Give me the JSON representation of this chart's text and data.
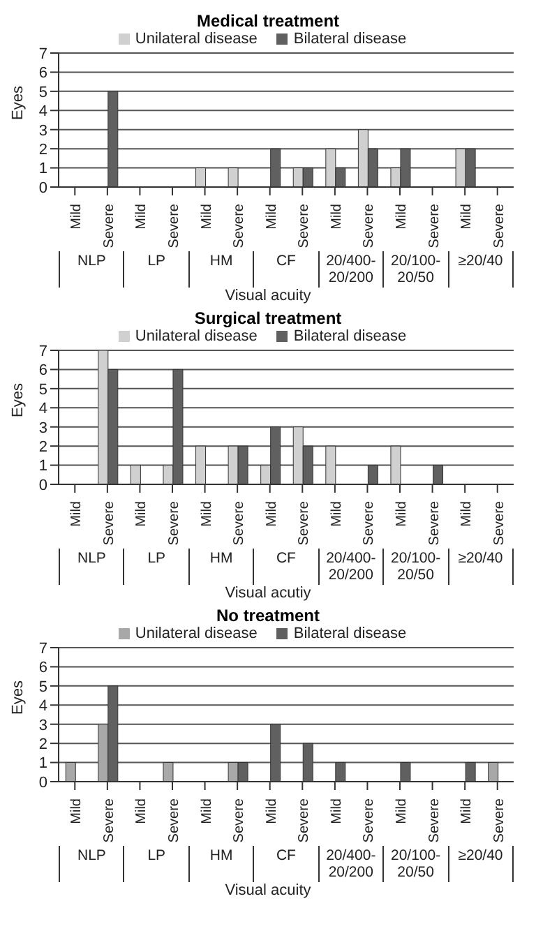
{
  "chart_data": [
    {
      "type": "bar",
      "title": "Medical treatment",
      "xlabel": "Visual acuity",
      "ylabel": "Eyes",
      "categories": [
        "Mild",
        "Severe",
        "Mild",
        "Severe",
        "Mild",
        "Severe",
        "Mild",
        "Severe",
        "Mild",
        "Severe",
        "Mild",
        "Severe",
        "Mild",
        "Severe"
      ],
      "annotations": [
        "NLP",
        "LP",
        "HM",
        "CF",
        "20/400-20/200",
        "20/100-20/50",
        "≥20/40"
      ],
      "series": [
        {
          "name": "Unilateral disease",
          "color": "#d0d0d0",
          "values": [
            0,
            0,
            0,
            0,
            1,
            1,
            0,
            1,
            2,
            3,
            1,
            0,
            2,
            0
          ]
        },
        {
          "name": "Bilateral disease",
          "color": "#606060",
          "values": [
            0,
            5,
            0,
            0,
            0,
            0,
            2,
            1,
            1,
            2,
            2,
            0,
            2,
            0
          ]
        }
      ],
      "ylim": [
        0,
        7
      ],
      "yticks": [
        0,
        1,
        2,
        3,
        4,
        5,
        6,
        7
      ],
      "grid": "y",
      "legend": "top"
    },
    {
      "type": "bar",
      "title": "Surgical treatment",
      "xlabel": "Visual acutiy",
      "ylabel": "Eyes",
      "categories": [
        "Mild",
        "Severe",
        "Mild",
        "Severe",
        "Mild",
        "Severe",
        "Mild",
        "Severe",
        "Mild",
        "Severe",
        "Mild",
        "Severe",
        "Mild",
        "Severe"
      ],
      "annotations": [
        "NLP",
        "LP",
        "HM",
        "CF",
        "20/400-20/200",
        "20/100-20/50",
        "≥20/40"
      ],
      "series": [
        {
          "name": "Unilateral disease",
          "color": "#d0d0d0",
          "values": [
            0,
            7,
            1,
            1,
            2,
            2,
            1,
            3,
            2,
            0,
            2,
            0,
            0,
            0
          ]
        },
        {
          "name": "Bilateral disease",
          "color": "#606060",
          "values": [
            0,
            6,
            0,
            6,
            0,
            2,
            3,
            2,
            0,
            1,
            0,
            1,
            0,
            0
          ]
        }
      ],
      "ylim": [
        0,
        7
      ],
      "yticks": [
        0,
        1,
        2,
        3,
        4,
        5,
        6,
        7
      ],
      "grid": "y",
      "legend": "top"
    },
    {
      "type": "bar",
      "title": "No treatment",
      "xlabel": "Visual acuity",
      "ylabel": "Eyes",
      "categories": [
        "Mild",
        "Severe",
        "Mild",
        "Severe",
        "Mild",
        "Severe",
        "Mild",
        "Severe",
        "Mild",
        "Severe",
        "Mild",
        "Severe",
        "Mild",
        "Severe"
      ],
      "annotations": [
        "NLP",
        "LP",
        "HM",
        "CF",
        "20/400-20/200",
        "20/100-20/50",
        "≥20/40"
      ],
      "series": [
        {
          "name": "Unilateral disease",
          "color": "#a8a8a8",
          "values": [
            1,
            3,
            0,
            1,
            0,
            1,
            0,
            0,
            0,
            0,
            0,
            0,
            0,
            1
          ]
        },
        {
          "name": "Bilateral disease",
          "color": "#606060",
          "values": [
            0,
            5,
            0,
            0,
            0,
            1,
            3,
            2,
            1,
            0,
            1,
            0,
            1,
            0
          ]
        }
      ],
      "ylim": [
        0,
        7
      ],
      "yticks": [
        0,
        1,
        2,
        3,
        4,
        5,
        6,
        7
      ],
      "grid": "y",
      "legend": "top"
    }
  ]
}
